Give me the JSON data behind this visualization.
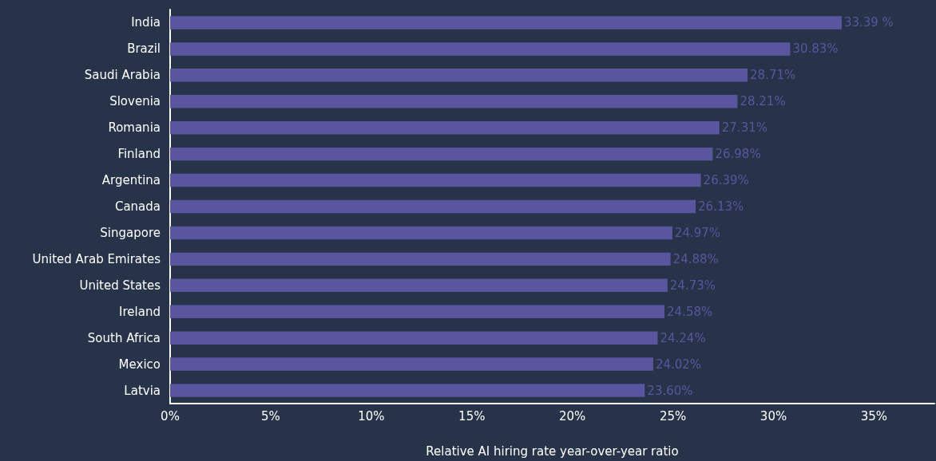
{
  "chart_data": {
    "type": "bar",
    "orientation": "horizontal",
    "xlabel": "Relative AI hiring rate year-over-year ratio",
    "categories": [
      "India",
      "Brazil",
      "Saudi Arabia",
      "Slovenia",
      "Romania",
      "Finland",
      "Argentina",
      "Canada",
      "Singapore",
      "United Arab Emirates",
      "United States",
      "Ireland",
      "South Africa",
      "Mexico",
      "Latvia"
    ],
    "values": [
      33.39,
      30.83,
      28.71,
      28.21,
      27.31,
      26.98,
      26.39,
      26.13,
      24.97,
      24.88,
      24.73,
      24.58,
      24.24,
      24.02,
      23.6
    ],
    "value_labels": [
      "33.39 %",
      "30.83%",
      "28.71%",
      "28.21%",
      "27.31%",
      "26.98%",
      "26.39%",
      "26.13%",
      "24.97%",
      "24.88%",
      "24.73%",
      "24.58%",
      "24.24%",
      "24.02%",
      "23.60%"
    ],
    "color": "#5b559f",
    "xlim": [
      0,
      38
    ],
    "xticks": [
      {
        "value": 0,
        "label": "0%"
      },
      {
        "value": 5,
        "label": "5%"
      },
      {
        "value": 10,
        "label": "10%"
      },
      {
        "value": 15,
        "label": "15%"
      },
      {
        "value": 20,
        "label": "20%"
      },
      {
        "value": 25,
        "label": "25%"
      },
      {
        "value": 30,
        "label": "30%"
      },
      {
        "value": 35,
        "label": "35%"
      }
    ],
    "grid": false
  }
}
